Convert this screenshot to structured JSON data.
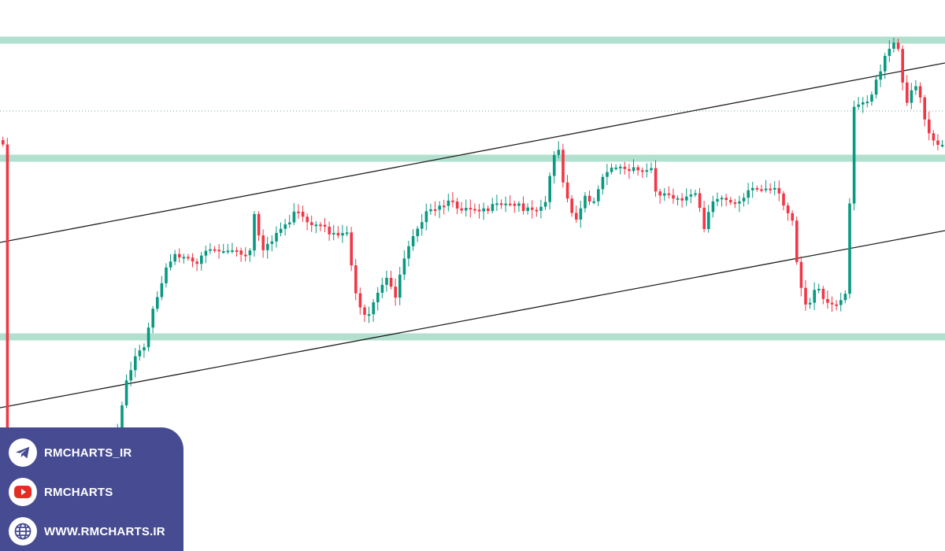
{
  "chart_data": {
    "type": "candlestick",
    "title": "",
    "xlabel": "",
    "ylabel": "",
    "grid": false,
    "horizontal_levels": [
      "resistance-top",
      "resistance-mid",
      "support"
    ],
    "colors": {
      "up": "#089981",
      "down": "#f23645",
      "level": "#b2e0cf",
      "trendline": "#1f1f1f",
      "dotted": "#6aa9a0"
    }
  },
  "badge": {
    "bg": "#474b91",
    "items": [
      {
        "icon": "telegram-icon",
        "label": "RMCHARTS_IR"
      },
      {
        "icon": "youtube-icon",
        "label": "RMCHARTS"
      },
      {
        "icon": "globe-icon",
        "label": "WWW.RMCHARTS.IR"
      }
    ]
  }
}
